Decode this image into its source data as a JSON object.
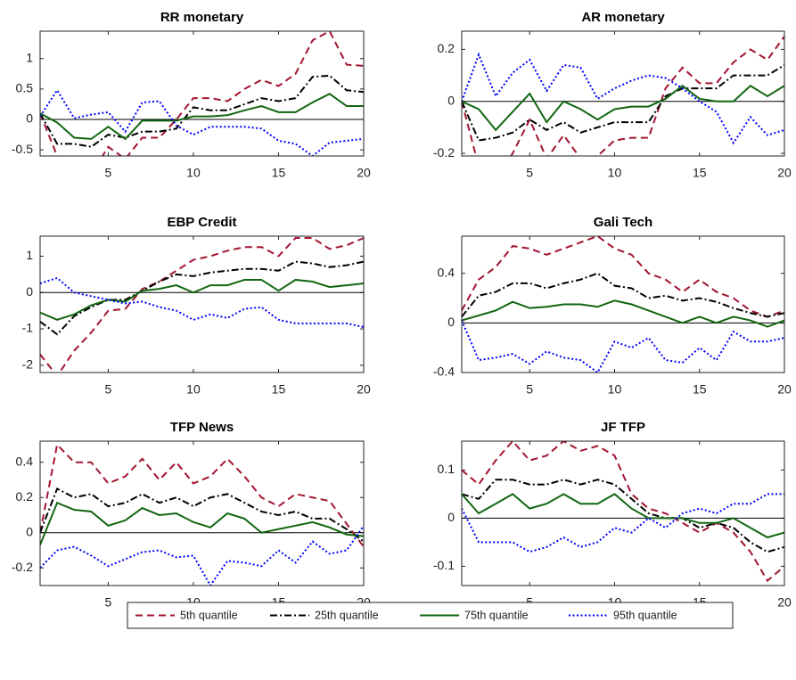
{
  "chart_data": [
    {
      "type": "line",
      "title": "RR monetary",
      "x": [
        1,
        2,
        3,
        4,
        5,
        6,
        7,
        8,
        9,
        10,
        11,
        12,
        13,
        14,
        15,
        16,
        17,
        18,
        19,
        20
      ],
      "xlim": [
        1,
        20
      ],
      "xticks": [
        5,
        10,
        15,
        20
      ],
      "ylim": [
        -0.6,
        1.45
      ],
      "yticks": [
        -0.5,
        0,
        0.5,
        1
      ],
      "reference_line": 0,
      "series": [
        {
          "name": "5th quantile",
          "color": "#a2142f",
          "dash": "dashed",
          "values": [
            0.1,
            -0.6,
            -0.8,
            -0.9,
            -0.45,
            -0.65,
            -0.3,
            -0.3,
            0,
            0.35,
            0.35,
            0.3,
            0.5,
            0.65,
            0.55,
            0.75,
            1.3,
            1.45,
            0.9,
            0.88
          ]
        },
        {
          "name": "25th quantile",
          "color": "#000000",
          "dash": "dashdot",
          "values": [
            0.1,
            -0.4,
            -0.4,
            -0.45,
            -0.25,
            -0.3,
            -0.2,
            -0.2,
            -0.15,
            0.2,
            0.15,
            0.15,
            0.25,
            0.35,
            0.3,
            0.35,
            0.7,
            0.72,
            0.48,
            0.45
          ]
        },
        {
          "name": "75th quantile",
          "color": "#116611",
          "dash": "solid",
          "values": [
            0.1,
            -0.05,
            -0.3,
            -0.32,
            -0.12,
            -0.32,
            -0.02,
            -0.02,
            -0.02,
            0.05,
            0.05,
            0.07,
            0.15,
            0.22,
            0.12,
            0.12,
            0.28,
            0.42,
            0.22,
            0.22
          ]
        },
        {
          "name": "95th quantile",
          "color": "#0000ff",
          "dash": "dotted",
          "values": [
            0.05,
            0.48,
            0.02,
            0.08,
            0.12,
            -0.2,
            0.28,
            0.3,
            -0.1,
            -0.25,
            -0.12,
            -0.12,
            -0.12,
            -0.15,
            -0.35,
            -0.4,
            -0.6,
            -0.38,
            -0.35,
            -0.32
          ]
        }
      ]
    },
    {
      "type": "line",
      "title": "AR monetary",
      "x": [
        1,
        2,
        3,
        4,
        5,
        6,
        7,
        8,
        9,
        10,
        11,
        12,
        13,
        14,
        15,
        16,
        17,
        18,
        19,
        20
      ],
      "xlim": [
        1,
        20
      ],
      "xticks": [
        5,
        10,
        15,
        20
      ],
      "ylim": [
        -0.21,
        0.27
      ],
      "yticks": [
        -0.2,
        0,
        0.2
      ],
      "reference_line": 0,
      "series": [
        {
          "name": "5th quantile",
          "color": "#a2142f",
          "dash": "dashed",
          "values": [
            0,
            -0.25,
            -0.3,
            -0.2,
            -0.07,
            -0.22,
            -0.13,
            -0.22,
            -0.21,
            -0.15,
            -0.14,
            -0.14,
            0.05,
            0.13,
            0.07,
            0.07,
            0.15,
            0.2,
            0.16,
            0.25
          ]
        },
        {
          "name": "25th quantile",
          "color": "#000000",
          "dash": "dashdot",
          "values": [
            0,
            -0.15,
            -0.14,
            -0.12,
            -0.07,
            -0.11,
            -0.08,
            -0.12,
            -0.1,
            -0.08,
            -0.08,
            -0.08,
            0.02,
            0.05,
            0.05,
            0.05,
            0.1,
            0.1,
            0.1,
            0.14
          ]
        },
        {
          "name": "75th quantile",
          "color": "#116611",
          "dash": "solid",
          "values": [
            0,
            -0.03,
            -0.11,
            -0.04,
            0.03,
            -0.08,
            0,
            -0.03,
            -0.07,
            -0.03,
            -0.02,
            -0.02,
            0.01,
            0.06,
            0.01,
            0,
            0,
            0.06,
            0.02,
            0.06
          ]
        },
        {
          "name": "95th quantile",
          "color": "#0000ff",
          "dash": "dotted",
          "values": [
            0,
            0.18,
            0.02,
            0.11,
            0.16,
            0.04,
            0.14,
            0.13,
            0.01,
            0.05,
            0.08,
            0.1,
            0.09,
            0.05,
            0,
            -0.04,
            -0.16,
            -0.06,
            -0.13,
            -0.11
          ]
        }
      ]
    },
    {
      "type": "line",
      "title": "EBP Credit",
      "x": [
        1,
        2,
        3,
        4,
        5,
        6,
        7,
        8,
        9,
        10,
        11,
        12,
        13,
        14,
        15,
        16,
        17,
        18,
        19,
        20
      ],
      "xlim": [
        1,
        20
      ],
      "xticks": [
        5,
        10,
        15,
        20
      ],
      "ylim": [
        -2.2,
        1.55
      ],
      "yticks": [
        -2,
        -1,
        0,
        1
      ],
      "reference_line": 0,
      "series": [
        {
          "name": "5th quantile",
          "color": "#a2142f",
          "dash": "dashed",
          "values": [
            -1.7,
            -2.3,
            -1.6,
            -1.1,
            -0.5,
            -0.45,
            0.1,
            0.3,
            0.6,
            0.9,
            1.0,
            1.15,
            1.25,
            1.25,
            1.0,
            1.5,
            1.5,
            1.2,
            1.3,
            1.5
          ]
        },
        {
          "name": "25th quantile",
          "color": "#000000",
          "dash": "dashdot",
          "values": [
            -0.8,
            -1.15,
            -0.65,
            -0.4,
            -0.2,
            -0.2,
            0.05,
            0.3,
            0.5,
            0.45,
            0.55,
            0.6,
            0.65,
            0.65,
            0.6,
            0.85,
            0.8,
            0.7,
            0.75,
            0.85
          ]
        },
        {
          "name": "75th quantile",
          "color": "#116611",
          "dash": "solid",
          "values": [
            -0.55,
            -0.75,
            -0.6,
            -0.35,
            -0.2,
            -0.25,
            0.05,
            0.1,
            0.2,
            0,
            0.2,
            0.2,
            0.35,
            0.35,
            0.05,
            0.35,
            0.3,
            0.15,
            0.2,
            0.25
          ]
        },
        {
          "name": "95th quantile",
          "color": "#0000ff",
          "dash": "dotted",
          "values": [
            0.25,
            0.4,
            0,
            -0.1,
            -0.2,
            -0.3,
            -0.25,
            -0.4,
            -0.5,
            -0.75,
            -0.6,
            -0.7,
            -0.45,
            -0.4,
            -0.75,
            -0.85,
            -0.85,
            -0.85,
            -0.85,
            -0.95
          ]
        }
      ]
    },
    {
      "type": "line",
      "title": "Gali Tech",
      "x": [
        1,
        2,
        3,
        4,
        5,
        6,
        7,
        8,
        9,
        10,
        11,
        12,
        13,
        14,
        15,
        16,
        17,
        18,
        19,
        20
      ],
      "xlim": [
        1,
        20
      ],
      "xticks": [
        5,
        10,
        15,
        20
      ],
      "ylim": [
        -0.4,
        0.7
      ],
      "yticks": [
        -0.4,
        0,
        0.4
      ],
      "reference_line": 0,
      "series": [
        {
          "name": "5th quantile",
          "color": "#a2142f",
          "dash": "dashed",
          "values": [
            0.1,
            0.35,
            0.45,
            0.62,
            0.6,
            0.55,
            0.6,
            0.65,
            0.7,
            0.6,
            0.55,
            0.4,
            0.35,
            0.25,
            0.35,
            0.25,
            0.2,
            0.1,
            0.05,
            0.1
          ]
        },
        {
          "name": "25th quantile",
          "color": "#000000",
          "dash": "dashdot",
          "values": [
            0.05,
            0.22,
            0.25,
            0.32,
            0.32,
            0.28,
            0.32,
            0.35,
            0.4,
            0.3,
            0.28,
            0.2,
            0.22,
            0.18,
            0.2,
            0.17,
            0.12,
            0.08,
            0.05,
            0.08
          ]
        },
        {
          "name": "75th quantile",
          "color": "#116611",
          "dash": "solid",
          "values": [
            0.02,
            0.06,
            0.1,
            0.17,
            0.12,
            0.13,
            0.15,
            0.15,
            0.13,
            0.18,
            0.15,
            0.1,
            0.05,
            0,
            0.05,
            0,
            0.05,
            0.02,
            -0.03,
            0.02
          ]
        },
        {
          "name": "95th quantile",
          "color": "#0000ff",
          "dash": "dotted",
          "values": [
            0.02,
            -0.3,
            -0.28,
            -0.25,
            -0.33,
            -0.23,
            -0.28,
            -0.3,
            -0.4,
            -0.15,
            -0.2,
            -0.12,
            -0.3,
            -0.32,
            -0.2,
            -0.3,
            -0.07,
            -0.15,
            -0.15,
            -0.12
          ]
        }
      ]
    },
    {
      "type": "line",
      "title": "TFP News",
      "x": [
        1,
        2,
        3,
        4,
        5,
        6,
        7,
        8,
        9,
        10,
        11,
        12,
        13,
        14,
        15,
        16,
        17,
        18,
        19,
        20
      ],
      "xlim": [
        1,
        20
      ],
      "xticks": [
        5,
        10,
        15,
        20
      ],
      "ylim": [
        -0.3,
        0.52
      ],
      "yticks": [
        -0.2,
        0,
        0.2,
        0.4
      ],
      "reference_line": 0,
      "series": [
        {
          "name": "5th quantile",
          "color": "#a2142f",
          "dash": "dashed",
          "values": [
            0,
            0.5,
            0.4,
            0.4,
            0.28,
            0.32,
            0.42,
            0.3,
            0.4,
            0.28,
            0.32,
            0.42,
            0.32,
            0.2,
            0.15,
            0.22,
            0.2,
            0.18,
            0.05,
            -0.08
          ]
        },
        {
          "name": "25th quantile",
          "color": "#000000",
          "dash": "dashdot",
          "values": [
            0,
            0.25,
            0.2,
            0.22,
            0.15,
            0.17,
            0.22,
            0.17,
            0.2,
            0.15,
            0.2,
            0.22,
            0.17,
            0.12,
            0.1,
            0.12,
            0.08,
            0.08,
            0.02,
            -0.05
          ]
        },
        {
          "name": "75th quantile",
          "color": "#116611",
          "dash": "solid",
          "values": [
            -0.07,
            0.17,
            0.13,
            0.12,
            0.04,
            0.07,
            0.14,
            0.1,
            0.11,
            0.06,
            0.03,
            0.11,
            0.08,
            0,
            0.02,
            0.04,
            0.06,
            0.03,
            -0.01,
            -0.02
          ]
        },
        {
          "name": "95th quantile",
          "color": "#0000ff",
          "dash": "dotted",
          "values": [
            -0.2,
            -0.1,
            -0.08,
            -0.13,
            -0.19,
            -0.15,
            -0.11,
            -0.1,
            -0.14,
            -0.13,
            -0.3,
            -0.16,
            -0.17,
            -0.19,
            -0.1,
            -0.17,
            -0.05,
            -0.12,
            -0.1,
            0.04
          ]
        }
      ]
    },
    {
      "type": "line",
      "title": "JF TFP",
      "x": [
        1,
        2,
        3,
        4,
        5,
        6,
        7,
        8,
        9,
        10,
        11,
        12,
        13,
        14,
        15,
        16,
        17,
        18,
        19,
        20
      ],
      "xlim": [
        1,
        20
      ],
      "xticks": [
        5,
        10,
        15,
        20
      ],
      "ylim": [
        -0.14,
        0.16
      ],
      "yticks": [
        -0.1,
        0,
        0.1
      ],
      "reference_line": 0,
      "series": [
        {
          "name": "5th quantile",
          "color": "#a2142f",
          "dash": "dashed",
          "values": [
            0.1,
            0.07,
            0.12,
            0.16,
            0.12,
            0.13,
            0.16,
            0.14,
            0.15,
            0.13,
            0.05,
            0.02,
            0.01,
            -0.01,
            -0.03,
            -0.01,
            -0.03,
            -0.07,
            -0.13,
            -0.1
          ]
        },
        {
          "name": "25th quantile",
          "color": "#000000",
          "dash": "dashdot",
          "values": [
            0.05,
            0.04,
            0.08,
            0.08,
            0.07,
            0.07,
            0.08,
            0.07,
            0.08,
            0.07,
            0.04,
            0.01,
            0,
            0,
            -0.02,
            -0.01,
            -0.02,
            -0.05,
            -0.07,
            -0.06
          ]
        },
        {
          "name": "75th quantile",
          "color": "#116611",
          "dash": "solid",
          "values": [
            0.05,
            0.01,
            0.03,
            0.05,
            0.02,
            0.03,
            0.05,
            0.03,
            0.03,
            0.05,
            0.02,
            0,
            0,
            0,
            -0.01,
            -0.01,
            0,
            -0.02,
            -0.04,
            -0.03
          ]
        },
        {
          "name": "95th quantile",
          "color": "#0000ff",
          "dash": "dotted",
          "values": [
            0.02,
            -0.05,
            -0.05,
            -0.05,
            -0.07,
            -0.06,
            -0.04,
            -0.06,
            -0.05,
            -0.02,
            -0.03,
            0,
            -0.02,
            0.01,
            0.02,
            0.01,
            0.03,
            0.03,
            0.05,
            0.05
          ]
        }
      ]
    }
  ]
}
